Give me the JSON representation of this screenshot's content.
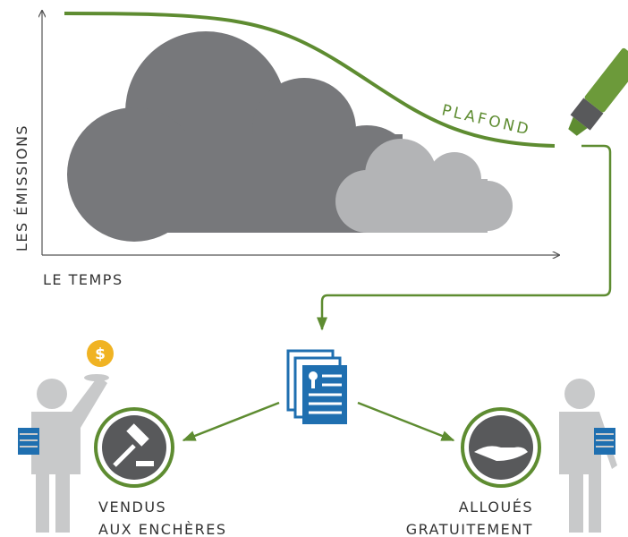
{
  "axes": {
    "y_label": "LES ÉMISSIONS",
    "x_label": "LE TEMPS"
  },
  "cap_label": "PLAFOND",
  "coin": "$",
  "left": {
    "line1": "VENDUS",
    "line2": "AUX ENCHÈRES"
  },
  "right": {
    "line1": "ALLOUÉS",
    "line2": "GRATUITEMENT"
  }
}
